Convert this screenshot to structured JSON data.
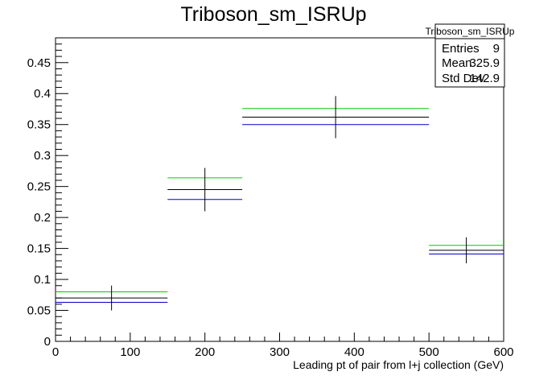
{
  "chart_data": {
    "type": "histogram",
    "title": "Triboson_sm_ISRUp",
    "xlabel": "Leading pt of pair from l+j collection (GeV)",
    "ylabel": "",
    "xlim": [
      0,
      600
    ],
    "ylim": [
      0,
      0.49
    ],
    "x_ticks": [
      0,
      100,
      200,
      300,
      400,
      500,
      600
    ],
    "y_ticks": [
      0,
      0.05,
      0.1,
      0.15,
      0.2,
      0.25,
      0.3,
      0.35,
      0.4,
      0.45
    ],
    "x_tick_labels": [
      "0",
      "100",
      "200",
      "300",
      "400",
      "500",
      "600"
    ],
    "y_tick_labels": [
      "0",
      "0.05",
      "0.1",
      "0.15",
      "0.2",
      "0.25",
      "0.3",
      "0.35",
      "0.4",
      "0.45"
    ],
    "bins": [
      {
        "low": 0,
        "high": 150
      },
      {
        "low": 150,
        "high": 250
      },
      {
        "low": 250,
        "high": 500
      },
      {
        "low": 500,
        "high": 600
      }
    ],
    "series": [
      {
        "color": "#00cc00",
        "values": [
          0.08,
          0.264,
          0.376,
          0.155
        ]
      },
      {
        "color": "#000000",
        "values": [
          0.07,
          0.245,
          0.362,
          0.147
        ],
        "errors": [
          0.02,
          0.035,
          0.034,
          0.021
        ]
      },
      {
        "color": "#0000cc",
        "values": [
          0.063,
          0.229,
          0.35,
          0.141
        ]
      }
    ],
    "stats_box": {
      "title": "Triboson_sm_ISRUp",
      "rows": [
        {
          "label": "Entries",
          "value": "9"
        },
        {
          "label": "Mean",
          "value": "325.9"
        },
        {
          "label": "Std Dev",
          "value": "142.9"
        }
      ]
    }
  }
}
